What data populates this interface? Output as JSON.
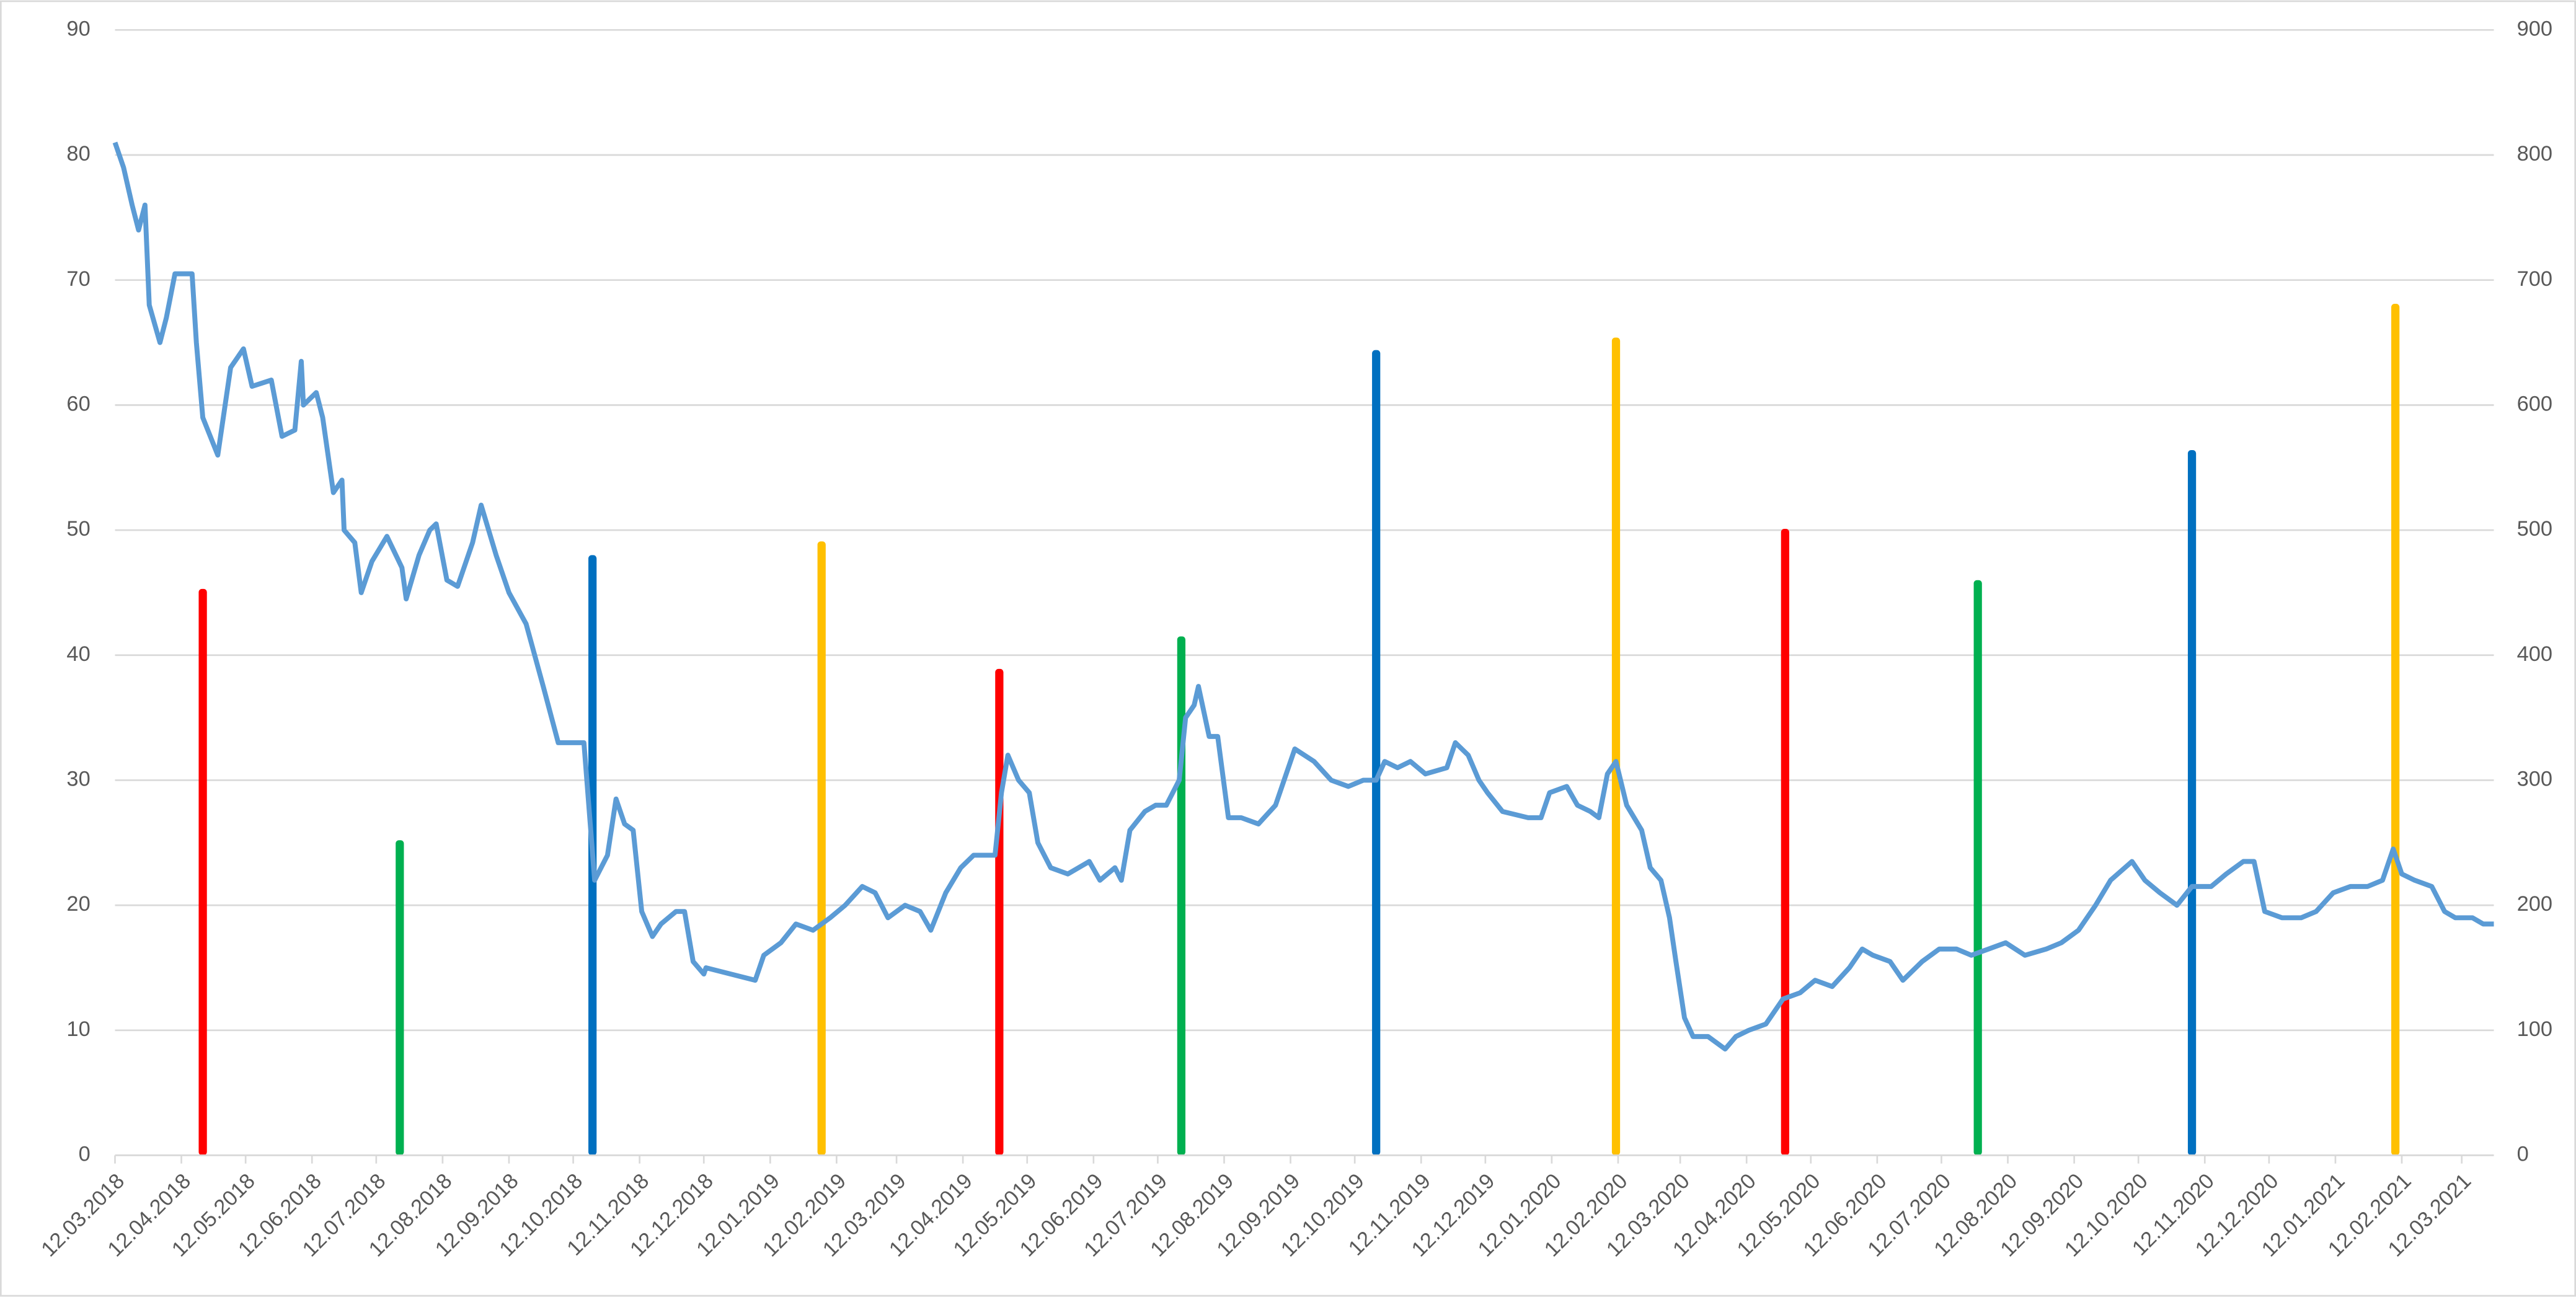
{
  "chart_data": {
    "type": "line",
    "grid": true,
    "xlim": [
      "2018-03-12",
      "2021-03-27"
    ],
    "xticks": [
      {
        "value": "2018-03-12",
        "label": "12.03.2018"
      },
      {
        "value": "2018-04-12",
        "label": "12.04.2018"
      },
      {
        "value": "2018-05-12",
        "label": "12.05.2018"
      },
      {
        "value": "2018-06-12",
        "label": "12.06.2018"
      },
      {
        "value": "2018-07-12",
        "label": "12.07.2018"
      },
      {
        "value": "2018-08-12",
        "label": "12.08.2018"
      },
      {
        "value": "2018-09-12",
        "label": "12.09.2018"
      },
      {
        "value": "2018-10-12",
        "label": "12.10.2018"
      },
      {
        "value": "2018-11-12",
        "label": "12.11.2018"
      },
      {
        "value": "2018-12-12",
        "label": "12.12.2018"
      },
      {
        "value": "2019-01-12",
        "label": "12.01.2019"
      },
      {
        "value": "2019-02-12",
        "label": "12.02.2019"
      },
      {
        "value": "2019-03-12",
        "label": "12.03.2019"
      },
      {
        "value": "2019-04-12",
        "label": "12.04.2019"
      },
      {
        "value": "2019-05-12",
        "label": "12.05.2019"
      },
      {
        "value": "2019-06-12",
        "label": "12.06.2019"
      },
      {
        "value": "2019-07-12",
        "label": "12.07.2019"
      },
      {
        "value": "2019-08-12",
        "label": "12.08.2019"
      },
      {
        "value": "2019-09-12",
        "label": "12.09.2019"
      },
      {
        "value": "2019-10-12",
        "label": "12.10.2019"
      },
      {
        "value": "2019-11-12",
        "label": "12.11.2019"
      },
      {
        "value": "2019-12-12",
        "label": "12.12.2019"
      },
      {
        "value": "2020-01-12",
        "label": "12.01.2020"
      },
      {
        "value": "2020-02-12",
        "label": "12.02.2020"
      },
      {
        "value": "2020-03-12",
        "label": "12.03.2020"
      },
      {
        "value": "2020-04-12",
        "label": "12.04.2020"
      },
      {
        "value": "2020-05-12",
        "label": "12.05.2020"
      },
      {
        "value": "2020-06-12",
        "label": "12.06.2020"
      },
      {
        "value": "2020-07-12",
        "label": "12.07.2020"
      },
      {
        "value": "2020-08-12",
        "label": "12.08.2020"
      },
      {
        "value": "2020-09-12",
        "label": "12.09.2020"
      },
      {
        "value": "2020-10-12",
        "label": "12.10.2020"
      },
      {
        "value": "2020-11-12",
        "label": "12.11.2020"
      },
      {
        "value": "2020-12-12",
        "label": "12.12.2020"
      },
      {
        "value": "2021-01-12",
        "label": "12.01.2021"
      },
      {
        "value": "2021-02-12",
        "label": "12.02.2021"
      },
      {
        "value": "2021-03-12",
        "label": "12.03.2021"
      }
    ],
    "ylim": [
      0,
      90
    ],
    "yticks": [
      0,
      10,
      20,
      30,
      40,
      50,
      60,
      70,
      80,
      90
    ],
    "y2lim": [
      0,
      900
    ],
    "y2ticks": [
      0,
      100,
      200,
      300,
      400,
      500,
      600,
      700,
      800,
      900
    ],
    "series": [
      {
        "type": "line",
        "color": "#5b9bd5",
        "x": [
          "2018-03-12",
          "2018-03-16",
          "2018-03-20",
          "2018-03-23",
          "2018-03-26",
          "2018-03-28",
          "2018-04-02",
          "2018-04-05",
          "2018-04-09",
          "2018-04-17",
          "2018-04-19",
          "2018-04-22",
          "2018-04-29",
          "2018-05-05",
          "2018-05-11",
          "2018-05-15",
          "2018-05-24",
          "2018-05-29",
          "2018-06-04",
          "2018-06-07",
          "2018-06-08",
          "2018-06-14",
          "2018-06-17",
          "2018-06-22",
          "2018-06-26",
          "2018-06-27",
          "2018-07-02",
          "2018-07-05",
          "2018-07-10",
          "2018-07-17",
          "2018-07-24",
          "2018-07-26",
          "2018-08-01",
          "2018-08-06",
          "2018-08-09",
          "2018-08-14",
          "2018-08-19",
          "2018-08-26",
          "2018-08-30",
          "2018-09-06",
          "2018-09-12",
          "2018-09-20",
          "2018-09-28",
          "2018-10-05",
          "2018-10-11",
          "2018-10-17",
          "2018-10-22",
          "2018-10-28",
          "2018-11-01",
          "2018-11-05",
          "2018-11-09",
          "2018-11-13",
          "2018-11-18",
          "2018-11-22",
          "2018-11-29",
          "2018-12-03",
          "2018-12-07",
          "2018-12-12",
          "2018-12-13",
          "2019-01-05",
          "2019-01-09",
          "2019-01-17",
          "2019-01-24",
          "2019-02-01",
          "2019-02-09",
          "2019-02-16",
          "2019-02-24",
          "2019-03-02",
          "2019-03-08",
          "2019-03-16",
          "2019-03-23",
          "2019-03-28",
          "2019-04-04",
          "2019-04-11",
          "2019-04-17",
          "2019-04-27",
          "2019-04-30",
          "2019-05-03",
          "2019-05-08",
          "2019-05-13",
          "2019-05-17",
          "2019-05-23",
          "2019-05-31",
          "2019-06-10",
          "2019-06-15",
          "2019-06-22",
          "2019-06-25",
          "2019-06-29",
          "2019-07-06",
          "2019-07-11",
          "2019-07-16",
          "2019-07-22",
          "2019-07-25",
          "2019-07-29",
          "2019-07-31",
          "2019-08-05",
          "2019-08-09",
          "2019-08-14",
          "2019-08-20",
          "2019-08-28",
          "2019-09-05",
          "2019-09-10",
          "2019-09-14",
          "2019-09-23",
          "2019-10-01",
          "2019-10-09",
          "2019-10-16",
          "2019-10-22",
          "2019-10-26",
          "2019-11-01",
          "2019-11-07",
          "2019-11-14",
          "2019-11-24",
          "2019-11-28",
          "2019-12-04",
          "2019-12-09",
          "2019-12-13",
          "2019-12-20",
          "2020-01-01",
          "2020-01-07",
          "2020-01-11",
          "2020-01-19",
          "2020-01-24",
          "2020-01-30",
          "2020-02-03",
          "2020-02-07",
          "2020-02-11",
          "2020-02-16",
          "2020-02-23",
          "2020-02-27",
          "2020-03-03",
          "2020-03-07",
          "2020-03-10",
          "2020-03-14",
          "2020-03-18",
          "2020-03-25",
          "2020-04-02",
          "2020-04-07",
          "2020-04-13",
          "2020-04-21",
          "2020-04-29",
          "2020-05-07",
          "2020-05-14",
          "2020-05-22",
          "2020-05-30",
          "2020-06-05",
          "2020-06-10",
          "2020-06-18",
          "2020-06-24",
          "2020-07-03",
          "2020-07-11",
          "2020-07-19",
          "2020-07-26",
          "2020-08-03",
          "2020-08-11",
          "2020-08-20",
          "2020-08-30",
          "2020-09-06",
          "2020-09-14",
          "2020-09-22",
          "2020-09-29",
          "2020-10-09",
          "2020-10-15",
          "2020-10-22",
          "2020-10-30",
          "2020-11-06",
          "2020-11-15",
          "2020-11-22",
          "2020-11-30",
          "2020-12-05",
          "2020-12-10",
          "2020-12-18",
          "2020-12-27",
          "2021-01-03",
          "2021-01-11",
          "2021-01-19",
          "2021-01-27",
          "2021-02-03",
          "2021-02-08",
          "2021-02-12",
          "2021-02-18",
          "2021-02-26",
          "2021-03-04",
          "2021-03-09",
          "2021-03-17",
          "2021-03-22",
          "2021-03-27"
        ],
        "values": [
          81,
          79,
          76,
          74,
          76,
          68,
          65,
          67,
          70.5,
          70.5,
          65,
          59,
          56,
          63,
          64.5,
          61.5,
          62,
          57.5,
          58,
          63.5,
          60,
          61,
          59,
          53,
          54,
          50,
          49,
          45,
          47.5,
          49.5,
          47,
          44.5,
          48,
          50,
          50.5,
          46,
          45.5,
          49,
          52,
          48,
          45,
          42.5,
          37.5,
          33,
          33,
          33,
          22,
          24,
          28.5,
          26.5,
          26,
          19.5,
          17.5,
          18.5,
          19.5,
          19.5,
          15.5,
          14.5,
          15,
          14,
          16,
          17,
          18.5,
          18,
          19,
          20,
          21.5,
          21,
          19,
          20,
          19.5,
          18,
          21,
          23,
          24,
          24,
          29,
          32,
          30,
          29,
          25,
          23,
          22.5,
          23.5,
          22,
          23,
          22,
          26,
          27.5,
          28,
          28,
          30,
          35,
          36,
          37.5,
          33.5,
          33.5,
          27,
          27,
          26.5,
          28,
          30.5,
          32.5,
          31.5,
          30,
          29.5,
          30,
          30,
          31.5,
          31,
          31.5,
          30.5,
          31,
          33,
          32,
          30,
          29,
          27.5,
          27,
          27,
          29,
          29.5,
          28,
          27.5,
          27,
          30.5,
          31.5,
          28,
          26,
          23,
          22,
          19,
          15.5,
          11,
          9.5,
          9.5,
          8.5,
          9.5,
          10,
          10.5,
          12.5,
          13,
          14,
          13.5,
          15,
          16.5,
          16,
          15.5,
          14,
          15.5,
          16.5,
          16.5,
          16,
          16.5,
          17,
          16,
          16.5,
          17,
          18,
          20,
          22,
          23.5,
          22,
          21,
          20,
          21.5,
          21.5,
          22.5,
          23.5,
          23.5,
          19.5,
          19,
          19,
          19.5,
          21,
          21.5,
          21.5,
          22,
          24.5,
          22.5,
          22,
          21.5,
          19.5,
          19,
          19,
          18.5,
          18.5
        ]
      },
      {
        "type": "bar",
        "axis": "y2",
        "color": "#ff0000",
        "x": [
          "2018-04-22",
          "2019-04-29",
          "2020-04-30"
        ],
        "values": [
          453,
          389,
          501
        ]
      },
      {
        "type": "bar",
        "axis": "y2",
        "color": "#00b050",
        "x": [
          "2018-07-23",
          "2019-07-23",
          "2020-07-29"
        ],
        "values": [
          252,
          415,
          460
        ]
      },
      {
        "type": "bar",
        "axis": "y2",
        "color": "#0070c0",
        "x": [
          "2018-10-21",
          "2019-10-22",
          "2020-11-06"
        ],
        "values": [
          480,
          644,
          564
        ]
      },
      {
        "type": "bar",
        "axis": "y2",
        "color": "#ffc000",
        "x": [
          "2019-02-05",
          "2020-02-11",
          "2021-02-09"
        ],
        "values": [
          491,
          654,
          681
        ]
      }
    ]
  }
}
